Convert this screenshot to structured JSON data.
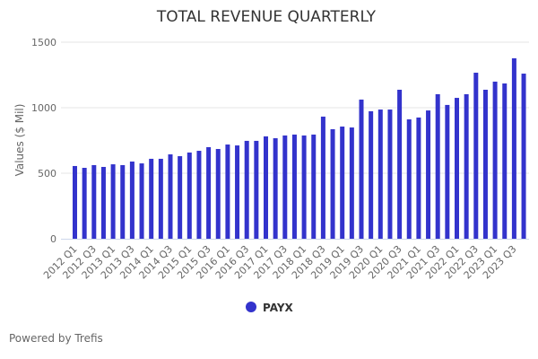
{
  "footer": {
    "powered_by": "Powered by Trefis"
  },
  "chart_data": {
    "type": "bar",
    "title": "TOTAL REVENUE QUARTERLY",
    "xlabel": "",
    "ylabel": "Values ($ Mil)",
    "ylim": [
      0,
      1500
    ],
    "yticks": [
      0,
      500,
      1000,
      1500
    ],
    "grid": true,
    "legend_position": "bottom-center",
    "categories": [
      "2012 Q1",
      "2012 Q2",
      "2012 Q3",
      "2012 Q4",
      "2013 Q1",
      "2013 Q2",
      "2013 Q3",
      "2013 Q4",
      "2014 Q1",
      "2014 Q2",
      "2014 Q3",
      "2014 Q4",
      "2015 Q1",
      "2015 Q2",
      "2015 Q3",
      "2015 Q4",
      "2016 Q1",
      "2016 Q2",
      "2016 Q3",
      "2016 Q4",
      "2017 Q1",
      "2017 Q2",
      "2017 Q3",
      "2017 Q4",
      "2018 Q1",
      "2018 Q2",
      "2018 Q3",
      "2018 Q4",
      "2019 Q1",
      "2019 Q2",
      "2019 Q3",
      "2019 Q4",
      "2020 Q1",
      "2020 Q2",
      "2020 Q3",
      "2020 Q4",
      "2021 Q1",
      "2021 Q2",
      "2021 Q3",
      "2021 Q4",
      "2022 Q1",
      "2022 Q2",
      "2022 Q3",
      "2022 Q4",
      "2023 Q1",
      "2023 Q2",
      "2023 Q3",
      "2023 Q4"
    ],
    "xtick_labels": [
      "2012 Q1",
      "2012 Q3",
      "2013 Q1",
      "2013 Q3",
      "2014 Q1",
      "2014 Q3",
      "2015 Q1",
      "2015 Q3",
      "2016 Q1",
      "2016 Q3",
      "2017 Q1",
      "2017 Q3",
      "2018 Q1",
      "2018 Q3",
      "2019 Q1",
      "2019 Q3",
      "2020 Q1",
      "2020 Q3",
      "2021 Q1",
      "2021 Q3",
      "2022 Q1",
      "2022 Q3",
      "2023 Q1",
      "2023 Q3"
    ],
    "series": [
      {
        "name": "PAYX",
        "color": "#3333cc",
        "values": [
          555,
          541,
          562,
          548,
          568,
          562,
          589,
          575,
          610,
          610,
          644,
          630,
          658,
          671,
          699,
          685,
          719,
          712,
          747,
          747,
          781,
          767,
          788,
          795,
          788,
          795,
          932,
          836,
          856,
          849,
          1062,
          973,
          986,
          986,
          1137,
          911,
          925,
          979,
          1103,
          1021,
          1075,
          1103,
          1267,
          1137,
          1199,
          1185,
          1377,
          1260
        ]
      }
    ]
  }
}
